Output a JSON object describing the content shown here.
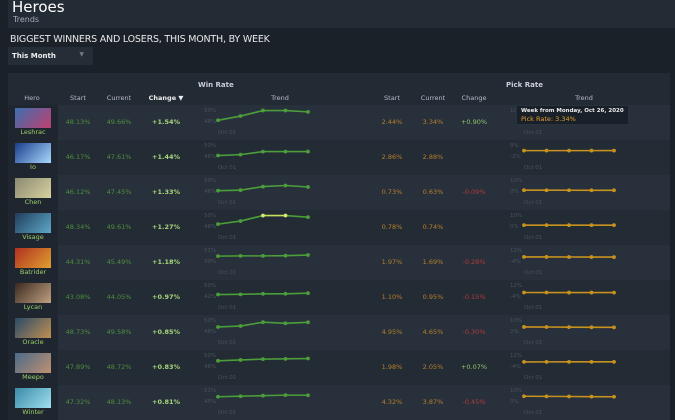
{
  "header": {
    "title": "Heroes",
    "subtitle": "Trends"
  },
  "section_title": "BIGGEST WINNERS AND LOSERS, THIS MONTH, BY WEEK",
  "period_select": {
    "value": "This Month"
  },
  "table": {
    "win_rate_label": "Win Rate",
    "pick_rate_label": "Pick Rate",
    "columns": {
      "hero": "Hero",
      "start": "Start",
      "current": "Current",
      "change": "Change",
      "trend": "Trend"
    },
    "sort": "change-descending",
    "x_label": "Oct 01",
    "colors": {
      "win": "#4c9e3a",
      "pick": "#c8921e",
      "positive": "#a8d67c",
      "negative": "#b43a3a"
    },
    "rows": [
      {
        "hero": "Leshrac",
        "win": {
          "start": "48.13%",
          "current": "49.66%",
          "change": "+1.54%",
          "axis": [
            "50%",
            "48%"
          ],
          "ylim": [
            48,
            50
          ],
          "trend": [
            48.13,
            48.9,
            49.9,
            49.9,
            49.66
          ]
        },
        "pick": {
          "start": "2.44%",
          "current": "3.34%",
          "change": "+0.90%",
          "axis": [
            "10%",
            ""
          ],
          "ylim": [
            0,
            10
          ],
          "trend": [
            2.44,
            2.6,
            2.9,
            3.1,
            3.34
          ]
        },
        "portrait": [
          "#3a6fb0",
          "#c04070"
        ]
      },
      {
        "hero": "Io",
        "win": {
          "start": "46.17%",
          "current": "47.61%",
          "change": "+1.44%",
          "axis": [
            "50%",
            "46%"
          ],
          "ylim": [
            46,
            50
          ],
          "trend": [
            46.17,
            46.5,
            47.6,
            47.6,
            47.61
          ]
        },
        "pick": {
          "start": "2.86%",
          "current": "2.88%",
          "change": "",
          "axis": [
            "9%",
            "-3%"
          ],
          "ylim": [
            -3,
            9
          ],
          "trend": [
            2.86,
            2.86,
            2.87,
            2.87,
            2.88
          ]
        },
        "portrait": [
          "#1a3d8a",
          "#a8d8ff"
        ]
      },
      {
        "hero": "Chen",
        "win": {
          "start": "46.12%",
          "current": "47.45%",
          "change": "+1.33%",
          "axis": [
            "50%",
            "46%"
          ],
          "ylim": [
            46,
            50
          ],
          "trend": [
            46.12,
            46.3,
            47.6,
            48.0,
            47.45
          ]
        },
        "pick": {
          "start": "0.73%",
          "current": "0.63%",
          "change": "-0.09%",
          "axis": [
            "10%",
            "0%"
          ],
          "ylim": [
            0,
            10
          ],
          "trend": [
            0.73,
            0.7,
            0.68,
            0.65,
            0.63
          ]
        },
        "portrait": [
          "#8a8a70",
          "#d8d0a0"
        ]
      },
      {
        "hero": "Visage",
        "win": {
          "start": "48.34%",
          "current": "49.61%",
          "change": "+1.27%",
          "axis": [
            "50%",
            "48%"
          ],
          "ylim": [
            48,
            50
          ],
          "trend": [
            48.34,
            48.9,
            49.9,
            49.9,
            49.61
          ]
        },
        "pick": {
          "start": "0.78%",
          "current": "0.74%",
          "change": "",
          "axis": [
            "10%",
            "0%"
          ],
          "ylim": [
            0,
            10
          ],
          "trend": [
            0.78,
            0.77,
            0.76,
            0.75,
            0.74
          ]
        },
        "portrait": [
          "#1f3d5a",
          "#5fa8c8"
        ]
      },
      {
        "hero": "Batrider",
        "win": {
          "start": "44.31%",
          "current": "45.49%",
          "change": "+1.18%",
          "axis": [
            "51%",
            "39%"
          ],
          "ylim": [
            39,
            51
          ],
          "trend": [
            44.31,
            44.6,
            44.6,
            44.8,
            45.49
          ]
        },
        "pick": {
          "start": "1.97%",
          "current": "1.69%",
          "change": "-0.28%",
          "axis": [
            "12%",
            "-4%"
          ],
          "ylim": [
            -4,
            12
          ],
          "trend": [
            1.97,
            1.9,
            1.8,
            1.75,
            1.69
          ]
        },
        "portrait": [
          "#b03020",
          "#e0a030"
        ]
      },
      {
        "hero": "Lycan",
        "win": {
          "start": "43.08%",
          "current": "44.05%",
          "change": "+0.97%",
          "axis": [
            "50%",
            "42%"
          ],
          "ylim": [
            42,
            50
          ],
          "trend": [
            43.08,
            43.2,
            43.6,
            43.6,
            44.05
          ]
        },
        "pick": {
          "start": "1.10%",
          "current": "0.95%",
          "change": "-0.15%",
          "axis": [
            "12%",
            "-4%"
          ],
          "ylim": [
            -4,
            12
          ],
          "trend": [
            1.1,
            1.05,
            1.0,
            0.98,
            0.95
          ]
        },
        "portrait": [
          "#3a2a20",
          "#c0a080"
        ]
      },
      {
        "hero": "Oracle",
        "win": {
          "start": "48.73%",
          "current": "49.58%",
          "change": "+0.85%",
          "axis": [
            "50%",
            "48%"
          ],
          "ylim": [
            48,
            50
          ],
          "trend": [
            48.73,
            48.9,
            49.6,
            49.4,
            49.58
          ]
        },
        "pick": {
          "start": "4.95%",
          "current": "4.65%",
          "change": "-0.30%",
          "axis": [
            "10%",
            "2%"
          ],
          "ylim": [
            2,
            10
          ],
          "trend": [
            4.95,
            4.9,
            4.8,
            4.7,
            4.65
          ]
        },
        "portrait": [
          "#2a4a6a",
          "#c09050"
        ]
      },
      {
        "hero": "Meepo",
        "win": {
          "start": "47.89%",
          "current": "48.72%",
          "change": "+0.83%",
          "axis": [
            "50%",
            "46%"
          ],
          "ylim": [
            46,
            50
          ],
          "trend": [
            47.89,
            48.2,
            48.5,
            48.6,
            48.72
          ]
        },
        "pick": {
          "start": "1.98%",
          "current": "2.05%",
          "change": "+0.07%",
          "axis": [
            "12%",
            "-4%"
          ],
          "ylim": [
            -4,
            12
          ],
          "trend": [
            1.98,
            2.0,
            2.02,
            2.04,
            2.05
          ]
        },
        "portrait": [
          "#4a6a8a",
          "#c09070"
        ]
      },
      {
        "hero": "Winter",
        "win": {
          "start": "47.32%",
          "current": "48.13%",
          "change": "+0.81%",
          "axis": [
            "51%",
            "45%"
          ],
          "ylim": [
            45,
            51
          ],
          "trend": [
            47.32,
            47.6,
            47.9,
            48.2,
            48.13
          ]
        },
        "pick": {
          "start": "4.32%",
          "current": "3.87%",
          "change": "-0.45%",
          "axis": [
            "10%",
            "0%"
          ],
          "ylim": [
            0,
            10
          ],
          "trend": [
            4.32,
            4.2,
            4.1,
            3.95,
            3.87
          ]
        },
        "portrait": [
          "#3a8aa8",
          "#a0e0f0"
        ]
      }
    ]
  },
  "tooltip": {
    "title": "Week from Monday, Oct 26, 2020",
    "value": "Pick Rate: 3.34%"
  }
}
